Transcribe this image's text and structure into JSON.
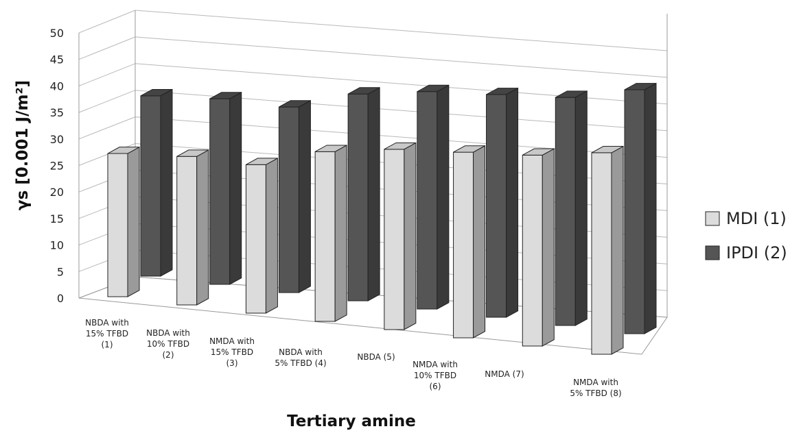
{
  "chart_data": {
    "type": "bar",
    "variant": "3d-clustered-column",
    "xlabel": "Tertiary amine",
    "ylabel": "γs [0.001 J/m²]",
    "ylim": [
      0,
      50
    ],
    "yticks": [
      0,
      5,
      10,
      15,
      20,
      25,
      30,
      35,
      40,
      45,
      50
    ],
    "grid": true,
    "legend_position": "right",
    "categories": [
      [
        "NBDA with",
        "15% TFBD",
        "(1)"
      ],
      [
        "NBDA with",
        "10% TFBD",
        "(2)"
      ],
      [
        "NMDA with",
        "15% TFBD",
        "(3)"
      ],
      [
        "NBDA   with",
        "5% TFBD (4)"
      ],
      [
        "NBDA (5)"
      ],
      [
        "NMDA with",
        "10% TFBD",
        "(6)"
      ],
      [
        "NMDA (7)"
      ],
      [
        "NMDA with",
        "5% TFBD (8)"
      ]
    ],
    "series": [
      {
        "name": "MDI (1)",
        "color": "#dcdcdc",
        "values": [
          27,
          28,
          28,
          32,
          34,
          35,
          36,
          38
        ]
      },
      {
        "name": "IPDI (2)",
        "color": "#555555",
        "values": [
          34,
          35,
          35,
          39,
          41,
          42,
          43,
          46
        ]
      }
    ]
  }
}
